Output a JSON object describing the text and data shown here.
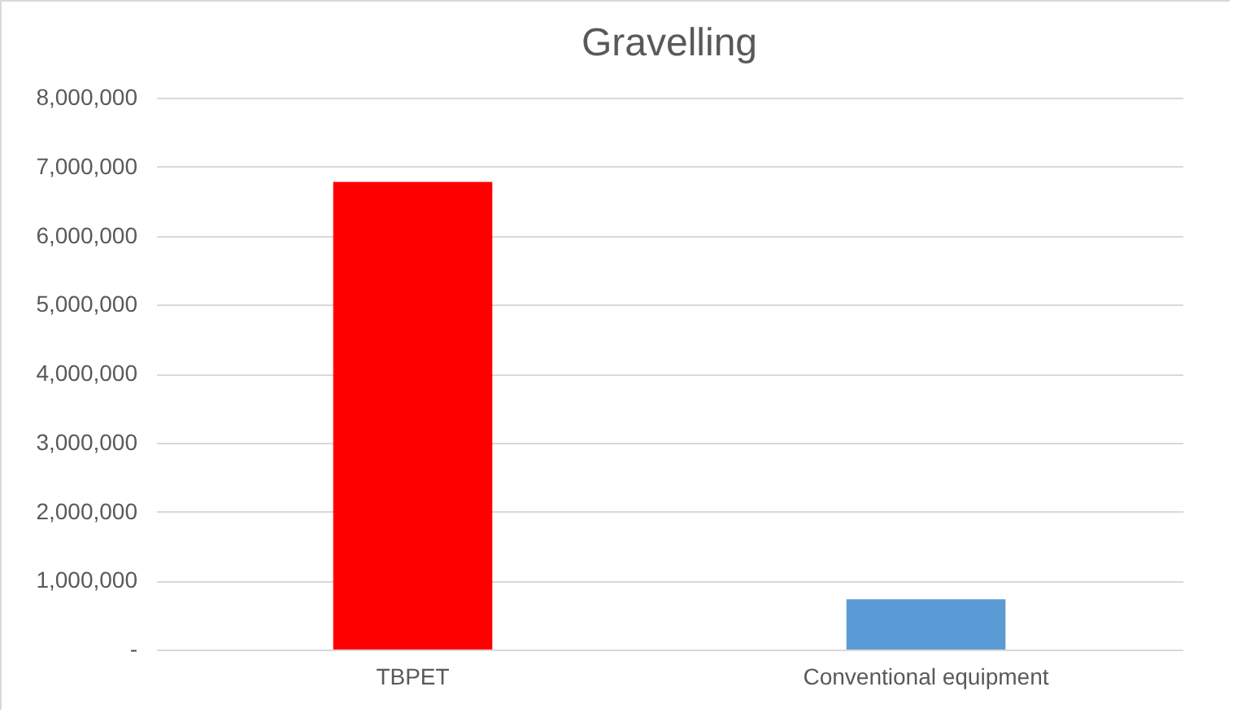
{
  "chart_data": {
    "type": "bar",
    "title": "Gravelling",
    "categories": [
      "TBPET",
      "Conventional equipment"
    ],
    "values": [
      6780000,
      730000
    ],
    "colors": [
      "#ff0000",
      "#5b9bd5"
    ],
    "ylim": [
      0,
      8000000
    ],
    "yticks": [
      {
        "value": 0,
        "label": "-"
      },
      {
        "value": 1000000,
        "label": "1,000,000"
      },
      {
        "value": 2000000,
        "label": "2,000,000"
      },
      {
        "value": 3000000,
        "label": "3,000,000"
      },
      {
        "value": 4000000,
        "label": "4,000,000"
      },
      {
        "value": 5000000,
        "label": "5,000,000"
      },
      {
        "value": 6000000,
        "label": "6,000,000"
      },
      {
        "value": 7000000,
        "label": "7,000,000"
      },
      {
        "value": 8000000,
        "label": "8,000,000"
      }
    ],
    "grid": "y"
  }
}
